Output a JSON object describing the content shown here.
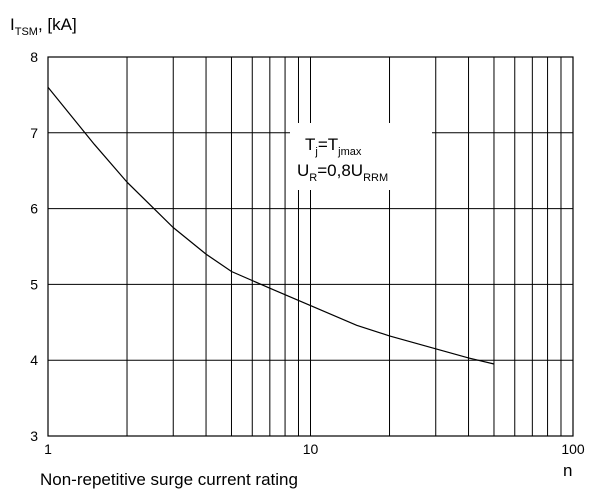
{
  "chart_data": {
    "type": "line",
    "title": "",
    "ylabel": {
      "main": "I",
      "sub": "TSM",
      "unit": ", [kA]"
    },
    "xlabel": "n",
    "caption": "Non-repetitive surge current rating",
    "xscale": "log",
    "xlim": [
      1,
      100
    ],
    "ylim": [
      3,
      8
    ],
    "grid": true,
    "x_ticks": [
      1,
      10,
      100
    ],
    "y_ticks": [
      3,
      4,
      5,
      6,
      7,
      8
    ],
    "annotation": {
      "line1": {
        "a": "T",
        "a_sub": "j",
        "eq": "=T",
        "b_sub": "jmax"
      },
      "line2": {
        "a": "U",
        "a_sub": "R",
        "eq": "=0,8U",
        "b_sub": "RRM"
      }
    },
    "series": [
      {
        "x": [
          1,
          1.5,
          2,
          3,
          4,
          5,
          7,
          10,
          15,
          20,
          30,
          40,
          50
        ],
        "y": [
          7.6,
          6.85,
          6.35,
          5.75,
          5.4,
          5.17,
          4.95,
          4.72,
          4.46,
          4.32,
          4.15,
          4.03,
          3.95
        ]
      }
    ]
  }
}
